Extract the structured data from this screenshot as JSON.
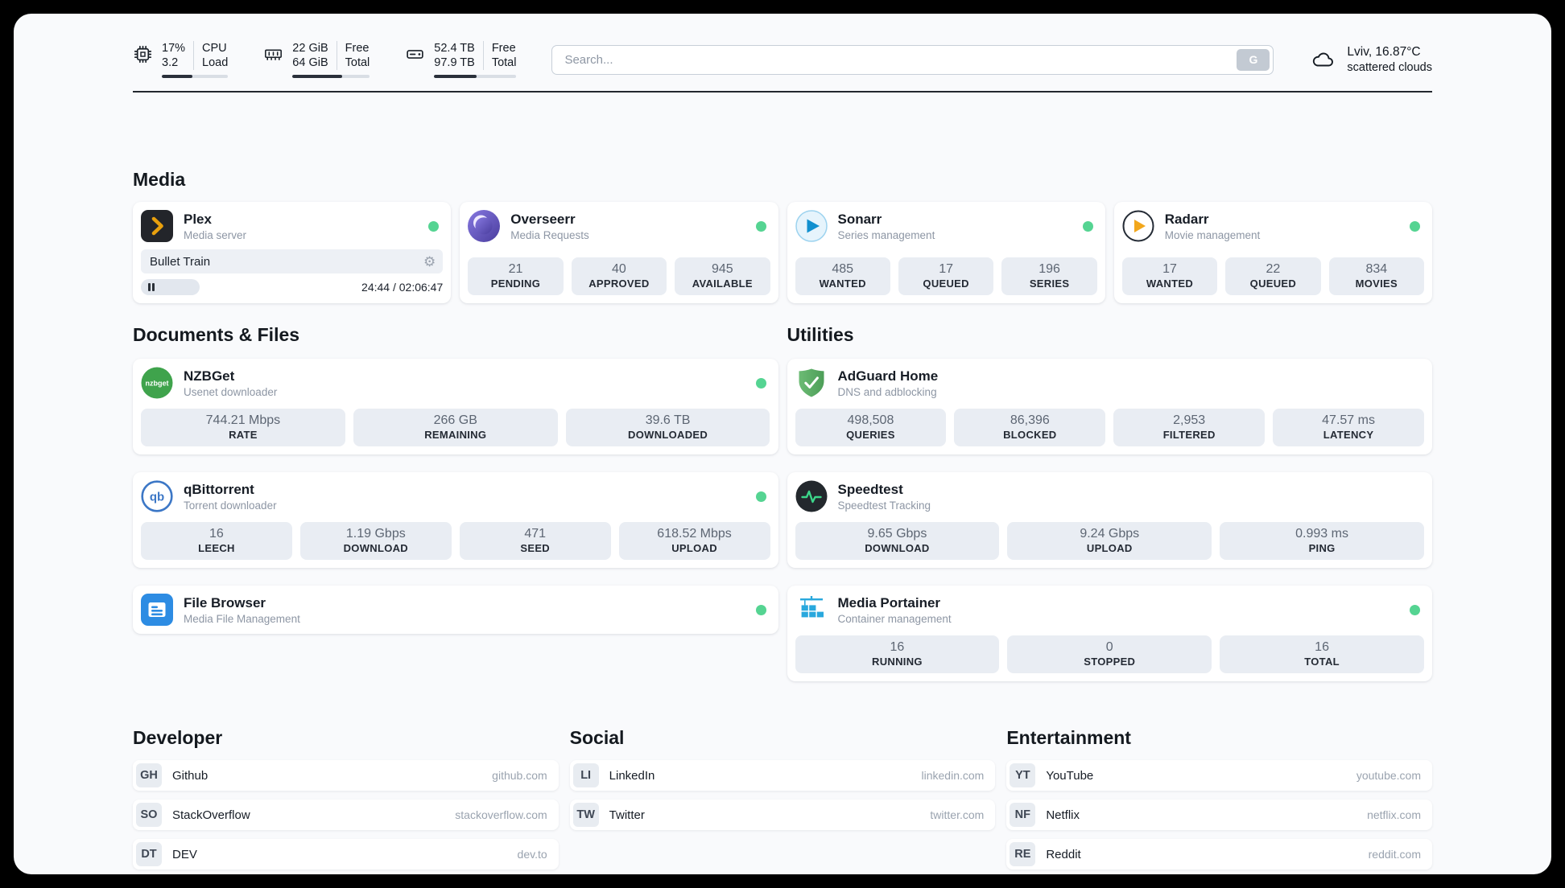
{
  "topbar": {
    "cpu": {
      "value_top": "17%",
      "value_bottom": "3.2",
      "label_top": "CPU",
      "label_bottom": "Load",
      "bar_percent": 46
    },
    "ram": {
      "value_top": "22 GiB",
      "value_bottom": "64 GiB",
      "label_top": "Free",
      "label_bottom": "Total",
      "bar_percent": 64
    },
    "disk": {
      "value_top": "52.4 TB",
      "value_bottom": "97.9 TB",
      "label_top": "Free",
      "label_bottom": "Total",
      "bar_percent": 52
    },
    "search": {
      "placeholder": "Search...",
      "engine_button": "G"
    },
    "weather": {
      "location": "Lviv, 16.87°C",
      "condition": "scattered clouds"
    }
  },
  "sections": {
    "media": "Media",
    "documents": "Documents & Files",
    "utilities": "Utilities",
    "developer": "Developer",
    "social": "Social",
    "entertainment": "Entertainment"
  },
  "apps": {
    "plex": {
      "name": "Plex",
      "subtitle": "Media server",
      "now_playing": "Bullet Train",
      "time": "24:44 / 02:06:47",
      "progress_percent": 19.5
    },
    "overseerr": {
      "name": "Overseerr",
      "subtitle": "Media Requests",
      "stats": [
        {
          "value": "21",
          "label": "PENDING"
        },
        {
          "value": "40",
          "label": "APPROVED"
        },
        {
          "value": "945",
          "label": "AVAILABLE"
        }
      ]
    },
    "sonarr": {
      "name": "Sonarr",
      "subtitle": "Series management",
      "stats": [
        {
          "value": "485",
          "label": "WANTED"
        },
        {
          "value": "17",
          "label": "QUEUED"
        },
        {
          "value": "196",
          "label": "SERIES"
        }
      ]
    },
    "radarr": {
      "name": "Radarr",
      "subtitle": "Movie management",
      "stats": [
        {
          "value": "17",
          "label": "WANTED"
        },
        {
          "value": "22",
          "label": "QUEUED"
        },
        {
          "value": "834",
          "label": "MOVIES"
        }
      ]
    },
    "nzbget": {
      "name": "NZBGet",
      "subtitle": "Usenet downloader",
      "stats": [
        {
          "value": "744.21 Mbps",
          "label": "RATE"
        },
        {
          "value": "266 GB",
          "label": "REMAINING"
        },
        {
          "value": "39.6 TB",
          "label": "DOWNLOADED"
        }
      ]
    },
    "qbittorrent": {
      "name": "qBittorrent",
      "subtitle": "Torrent downloader",
      "stats": [
        {
          "value": "16",
          "label": "LEECH"
        },
        {
          "value": "1.19 Gbps",
          "label": "DOWNLOAD"
        },
        {
          "value": "471",
          "label": "SEED"
        },
        {
          "value": "618.52 Mbps",
          "label": "UPLOAD"
        }
      ]
    },
    "filebrowser": {
      "name": "File Browser",
      "subtitle": "Media File Management"
    },
    "adguard": {
      "name": "AdGuard Home",
      "subtitle": "DNS and adblocking",
      "stats": [
        {
          "value": "498,508",
          "label": "QUERIES"
        },
        {
          "value": "86,396",
          "label": "BLOCKED"
        },
        {
          "value": "2,953",
          "label": "FILTERED"
        },
        {
          "value": "47.57 ms",
          "label": "LATENCY"
        }
      ]
    },
    "speedtest": {
      "name": "Speedtest",
      "subtitle": "Speedtest Tracking",
      "stats": [
        {
          "value": "9.65 Gbps",
          "label": "DOWNLOAD"
        },
        {
          "value": "9.24 Gbps",
          "label": "UPLOAD"
        },
        {
          "value": "0.993 ms",
          "label": "PING"
        }
      ]
    },
    "portainer": {
      "name": "Media Portainer",
      "subtitle": "Container management",
      "stats": [
        {
          "value": "16",
          "label": "RUNNING"
        },
        {
          "value": "0",
          "label": "STOPPED"
        },
        {
          "value": "16",
          "label": "TOTAL"
        }
      ]
    }
  },
  "bookmarks": {
    "developer": [
      {
        "abbr": "GH",
        "name": "Github",
        "url": "github.com"
      },
      {
        "abbr": "SO",
        "name": "StackOverflow",
        "url": "stackoverflow.com"
      },
      {
        "abbr": "DT",
        "name": "DEV",
        "url": "dev.to"
      }
    ],
    "social": [
      {
        "abbr": "LI",
        "name": "LinkedIn",
        "url": "linkedin.com"
      },
      {
        "abbr": "TW",
        "name": "Twitter",
        "url": "twitter.com"
      }
    ],
    "entertainment": [
      {
        "abbr": "YT",
        "name": "YouTube",
        "url": "youtube.com"
      },
      {
        "abbr": "NF",
        "name": "Netflix",
        "url": "netflix.com"
      },
      {
        "abbr": "RE",
        "name": "Reddit",
        "url": "reddit.com"
      }
    ]
  },
  "colors": {
    "status_online": "#55d492",
    "accent_dark": "#23272e",
    "statbox_bg": "#e9edf3"
  }
}
